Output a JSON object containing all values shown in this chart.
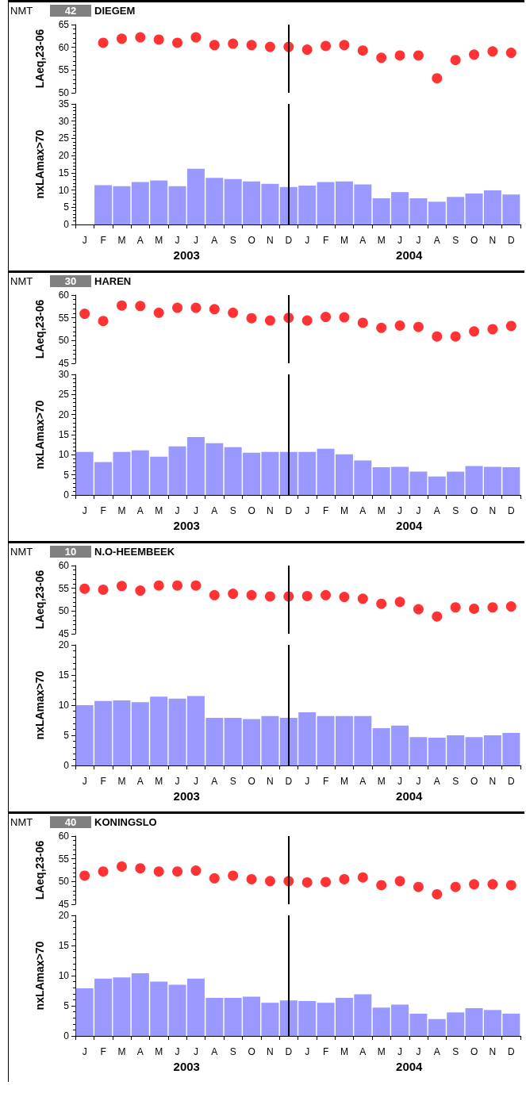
{
  "chart_data": [
    {
      "type": "scatter",
      "title": "DIEGEM",
      "annotations": [
        "NMT",
        "42"
      ],
      "ylabel": "LAeq,23-06",
      "categories": [
        "J",
        "F",
        "M",
        "A",
        "M",
        "J",
        "J",
        "A",
        "S",
        "O",
        "N",
        "D",
        "J",
        "F",
        "M",
        "A",
        "M",
        "J",
        "J",
        "A",
        "S",
        "O",
        "N",
        "D"
      ],
      "values": [
        null,
        61.0,
        61.9,
        62.2,
        61.7,
        61.0,
        62.2,
        60.5,
        60.8,
        60.5,
        60.1,
        60.1,
        59.5,
        60.3,
        60.5,
        59.3,
        57.7,
        58.2,
        58.2,
        53.2,
        57.2,
        58.4,
        59.1,
        58.8
      ],
      "color": "#ff0000",
      "marker": "circle",
      "ylim": [
        50,
        65
      ],
      "yticks": [
        50,
        55,
        60,
        65
      ],
      "tick_labels": "y",
      "ref_lines": [
        {
          "axis": "x",
          "value": "D",
          "color": "#000000"
        }
      ]
    },
    {
      "type": "bar",
      "ylabel": "nxLAmax>70",
      "annotations": [
        "2003",
        "2004"
      ],
      "categories": [
        "J",
        "F",
        "M",
        "A",
        "M",
        "J",
        "J",
        "A",
        "S",
        "O",
        "N",
        "D",
        "J",
        "F",
        "M",
        "A",
        "M",
        "J",
        "J",
        "A",
        "S",
        "O",
        "N",
        "D"
      ],
      "values": [
        null,
        11.4,
        11.1,
        12.3,
        12.8,
        11.1,
        16.2,
        13.5,
        13.2,
        12.5,
        11.8,
        10.9,
        11.3,
        12.3,
        12.5,
        11.6,
        7.6,
        9.4,
        7.6,
        6.6,
        8.0,
        9.0,
        9.9,
        8.7
      ],
      "color": "#9999ff",
      "ylim": [
        0,
        35
      ],
      "yticks": [
        0,
        5,
        10,
        15,
        20,
        25,
        30,
        35
      ],
      "ref_lines": [
        {
          "axis": "x",
          "value": "D",
          "color": "#000000"
        }
      ]
    },
    {
      "type": "scatter",
      "title": "HAREN",
      "annotations": [
        "NMT",
        "30"
      ],
      "ylabel": "LAeq,23-06",
      "categories": [
        "J",
        "F",
        "M",
        "A",
        "M",
        "J",
        "J",
        "A",
        "S",
        "O",
        "N",
        "D",
        "J",
        "F",
        "M",
        "A",
        "M",
        "J",
        "J",
        "A",
        "S",
        "O",
        "N",
        "D"
      ],
      "values": [
        55.9,
        54.3,
        57.7,
        57.6,
        56.1,
        57.2,
        57.2,
        56.9,
        56.1,
        54.9,
        54.4,
        55.0,
        54.4,
        55.2,
        55.1,
        53.9,
        52.8,
        53.3,
        53.0,
        50.9,
        50.9,
        52.0,
        52.5,
        53.2
      ],
      "color": "#ff0000",
      "marker": "circle",
      "ylim": [
        45,
        60
      ],
      "yticks": [
        45,
        50,
        55,
        60
      ],
      "tick_labels": "y",
      "ref_lines": [
        {
          "axis": "x",
          "value": "D",
          "color": "#000000"
        }
      ]
    },
    {
      "type": "bar",
      "ylabel": "nxLAmax>70",
      "annotations": [
        "2003",
        "2004"
      ],
      "categories": [
        "J",
        "F",
        "M",
        "A",
        "M",
        "J",
        "J",
        "A",
        "S",
        "O",
        "N",
        "D",
        "J",
        "F",
        "M",
        "A",
        "M",
        "J",
        "J",
        "A",
        "S",
        "O",
        "N",
        "D"
      ],
      "values": [
        10.7,
        8.2,
        10.7,
        11.1,
        9.5,
        12.1,
        14.4,
        12.9,
        11.9,
        10.5,
        10.7,
        10.7,
        10.7,
        11.5,
        10.1,
        8.6,
        6.9,
        7.0,
        5.8,
        4.6,
        5.8,
        7.2,
        7.0,
        6.9
      ],
      "color": "#9999ff",
      "ylim": [
        0,
        30
      ],
      "yticks": [
        0,
        5,
        10,
        15,
        20,
        25,
        30
      ],
      "ref_lines": [
        {
          "axis": "x",
          "value": "D",
          "color": "#000000"
        }
      ]
    },
    {
      "type": "scatter",
      "title": "N.O-HEEMBEEK",
      "annotations": [
        "NMT",
        "10"
      ],
      "ylabel": "LAeq,23-06",
      "categories": [
        "J",
        "F",
        "M",
        "A",
        "M",
        "J",
        "J",
        "A",
        "S",
        "O",
        "N",
        "D",
        "J",
        "F",
        "M",
        "A",
        "M",
        "J",
        "J",
        "A",
        "S",
        "O",
        "N",
        "D"
      ],
      "values": [
        54.9,
        54.7,
        55.5,
        54.5,
        55.6,
        55.6,
        55.6,
        53.5,
        53.8,
        53.5,
        53.2,
        53.2,
        53.3,
        53.5,
        53.1,
        52.7,
        51.6,
        52.0,
        50.4,
        48.8,
        50.8,
        50.5,
        50.8,
        51.0
      ],
      "color": "#ff0000",
      "marker": "circle",
      "ylim": [
        45,
        60
      ],
      "yticks": [
        45,
        50,
        55,
        60
      ],
      "tick_labels": "y",
      "ref_lines": [
        {
          "axis": "x",
          "value": "D",
          "color": "#000000"
        }
      ]
    },
    {
      "type": "bar",
      "ylabel": "nxLAmax>70",
      "annotations": [
        "2003",
        "2004"
      ],
      "categories": [
        "J",
        "F",
        "M",
        "A",
        "M",
        "J",
        "J",
        "A",
        "S",
        "O",
        "N",
        "D",
        "J",
        "F",
        "M",
        "A",
        "M",
        "J",
        "J",
        "A",
        "S",
        "O",
        "N",
        "D"
      ],
      "values": [
        10.0,
        10.7,
        10.8,
        10.5,
        11.4,
        11.1,
        11.5,
        7.9,
        7.9,
        7.7,
        8.2,
        7.9,
        8.8,
        8.2,
        8.2,
        8.2,
        6.2,
        6.6,
        4.7,
        4.6,
        5.0,
        4.7,
        5.0,
        5.4
      ],
      "color": "#9999ff",
      "ylim": [
        0,
        20
      ],
      "yticks": [
        0,
        5,
        10,
        15,
        20
      ],
      "ref_lines": [
        {
          "axis": "x",
          "value": "D",
          "color": "#000000"
        }
      ]
    },
    {
      "type": "scatter",
      "title": "KONINGSLO",
      "annotations": [
        "NMT",
        "40"
      ],
      "ylabel": "LAeq,23-06",
      "categories": [
        "J",
        "F",
        "M",
        "A",
        "M",
        "J",
        "J",
        "A",
        "S",
        "O",
        "N",
        "D",
        "J",
        "F",
        "M",
        "A",
        "M",
        "J",
        "J",
        "A",
        "S",
        "O",
        "N",
        "D"
      ],
      "values": [
        51.3,
        52.2,
        53.3,
        52.9,
        52.2,
        52.2,
        52.4,
        50.7,
        51.3,
        50.5,
        50.1,
        50.1,
        49.8,
        49.9,
        50.5,
        50.9,
        49.2,
        50.1,
        48.8,
        47.2,
        48.8,
        49.4,
        49.4,
        49.2
      ],
      "color": "#ff0000",
      "marker": "circle",
      "ylim": [
        45,
        60
      ],
      "yticks": [
        45,
        50,
        55,
        60
      ],
      "tick_labels": "y",
      "ref_lines": [
        {
          "axis": "x",
          "value": "D",
          "color": "#000000"
        }
      ]
    },
    {
      "type": "bar",
      "ylabel": "nxLAmax>70",
      "annotations": [
        "2003",
        "2004"
      ],
      "categories": [
        "J",
        "F",
        "M",
        "A",
        "M",
        "J",
        "J",
        "A",
        "S",
        "O",
        "N",
        "D",
        "J",
        "F",
        "M",
        "A",
        "M",
        "J",
        "J",
        "A",
        "S",
        "O",
        "N",
        "D"
      ],
      "values": [
        7.9,
        9.5,
        9.7,
        10.4,
        9.0,
        8.5,
        9.5,
        6.3,
        6.3,
        6.5,
        5.5,
        5.9,
        5.8,
        5.5,
        6.3,
        6.9,
        4.7,
        5.2,
        3.7,
        2.8,
        3.9,
        4.6,
        4.3,
        3.7
      ],
      "color": "#9999ff",
      "ylim": [
        0,
        20
      ],
      "yticks": [
        0,
        5,
        10,
        15,
        20
      ],
      "ref_lines": [
        {
          "axis": "x",
          "value": "D",
          "color": "#000000"
        }
      ]
    }
  ]
}
